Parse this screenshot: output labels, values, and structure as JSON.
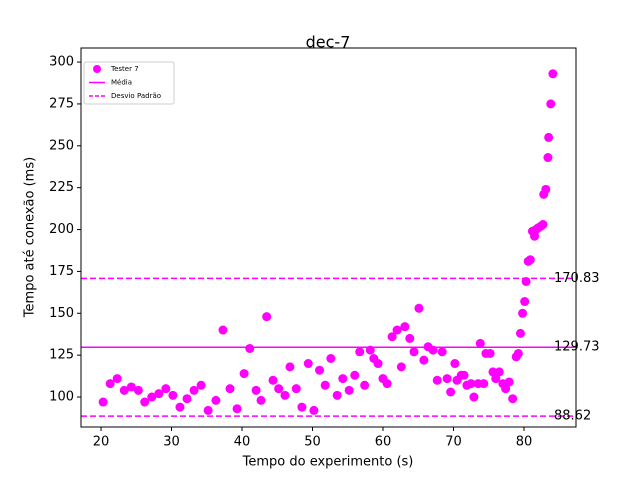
{
  "chart_data": {
    "type": "scatter",
    "title": "dec-7",
    "x_label": "Tempo do experimento (s)",
    "y_label": "Tempo até conexão (ms)",
    "xlim": [
      17.16,
      87.38
    ],
    "ylim": [
      82.1,
      308.4
    ],
    "xticks": [
      20,
      30,
      40,
      50,
      60,
      70,
      80
    ],
    "yticks": [
      100,
      125,
      150,
      175,
      200,
      225,
      250,
      275,
      300
    ],
    "legend": "upper left",
    "series": [
      {
        "name": "Tester 7",
        "color": "#ff00ff",
        "x": [
          20.3,
          21.3,
          22.3,
          23.3,
          24.3,
          25.3,
          26.2,
          27.2,
          28.2,
          29.2,
          30.2,
          31.2,
          32.2,
          33.2,
          34.2,
          35.2,
          36.3,
          37.3,
          38.3,
          39.3,
          40.3,
          41.1,
          42,
          42.7,
          43.5,
          44.4,
          45.2,
          46.1,
          46.8,
          47.7,
          48.5,
          49.4,
          50.2,
          51,
          51.8,
          52.6,
          53.5,
          54.3,
          55.2,
          56,
          56.7,
          57.4,
          58.2,
          58.7,
          59.3,
          60,
          60.6,
          61.3,
          62,
          62.6,
          63.1,
          63.8,
          64.4,
          65.1,
          65.8,
          66.4,
          67.1,
          67.7,
          68.4,
          69.1,
          69.6,
          70.2,
          70.5,
          71.1,
          71.5,
          71.9,
          72.5,
          72.9,
          73.5,
          73.8,
          74.3,
          74.6,
          75.2,
          75.6,
          76,
          76.5,
          77,
          77.4,
          77.9,
          78.4,
          78.9,
          79.2,
          79.5,
          79.8,
          80.1,
          80.3,
          80.6,
          80.9,
          81.2,
          81.5,
          81.7,
          82,
          82.4,
          82.7,
          82.8,
          83.1,
          83.4,
          83.5,
          83.8,
          84.1
        ],
        "values": [
          97,
          108,
          111,
          104,
          106,
          104,
          97,
          100,
          102,
          105,
          101,
          94,
          99,
          104,
          107,
          92,
          98,
          140,
          105,
          93,
          114,
          129,
          104,
          98,
          148,
          110,
          105,
          101,
          118,
          105,
          94,
          120,
          92,
          116,
          107,
          123,
          101,
          111,
          104,
          113,
          127,
          107,
          128,
          123,
          120,
          111,
          108,
          136,
          140,
          118,
          142,
          135,
          127,
          153,
          122,
          130,
          128,
          110,
          127,
          111,
          103,
          120,
          110,
          113,
          113,
          107,
          108,
          100,
          108,
          132,
          108,
          126,
          126,
          115,
          111,
          115,
          108,
          105,
          109,
          99,
          124,
          126,
          138,
          150,
          157,
          169,
          181,
          182,
          199,
          196,
          200,
          201,
          202,
          203,
          221,
          224,
          243,
          255,
          275,
          293
        ]
      }
    ],
    "hlines": [
      {
        "name": "Média",
        "value": 129.73,
        "color": "#ff00ff",
        "style": "solid"
      },
      {
        "name": "Desvio Padrão",
        "value": 170.83,
        "color": "#ff00ff",
        "style": "dashed"
      },
      {
        "value": 88.62,
        "color": "#ff00ff",
        "style": "dashed"
      }
    ]
  }
}
